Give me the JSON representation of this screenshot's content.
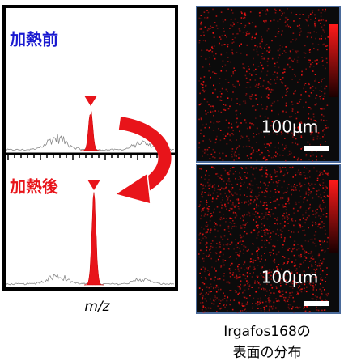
{
  "panels": [
    {
      "label": "加熱前"
    },
    {
      "label": "加熱後"
    }
  ],
  "axis_label": "m/z",
  "images": [
    {
      "scale": "100μm"
    },
    {
      "scale": "100μm"
    }
  ],
  "caption": [
    "Irgafos168の",
    "表面の分布"
  ]
}
